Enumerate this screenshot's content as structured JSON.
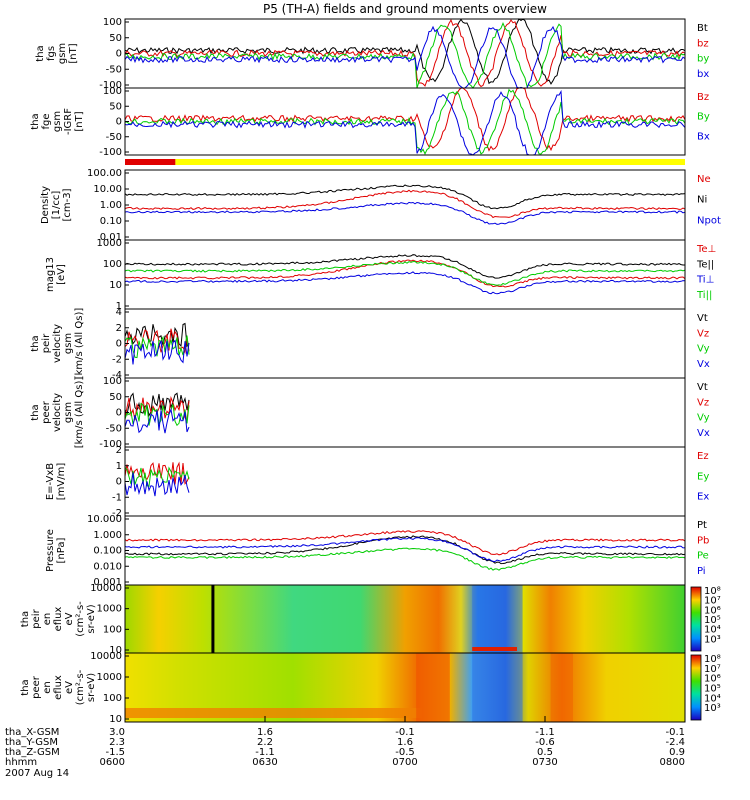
{
  "title": "P5 (TH-A) fields and ground moments overview",
  "date": "2007 Aug 14",
  "colors": {
    "black": "#000000",
    "red": "#e00000",
    "green": "#00cc00",
    "blue": "#0000e0",
    "yellow": "#ffff00"
  },
  "ephemeris": {
    "labels": [
      "tha_X-GSM",
      "tha_Y-GSM",
      "tha_Z-GSM",
      "hhmm"
    ],
    "columns": [
      {
        "x": "3.0",
        "y": "2.3",
        "z": "-1.5",
        "t": "0600"
      },
      {
        "x": "1.6",
        "y": "2.2",
        "z": "-1.1",
        "t": "0630"
      },
      {
        "x": "-0.1",
        "y": "1.6",
        "z": "-0.5",
        "t": "0700"
      },
      {
        "x": "-1.1",
        "y": "-0.6",
        "z": "0.5",
        "t": "0730"
      },
      {
        "x": "-0.1",
        "y": "-2.4",
        "z": "0.9",
        "t": "0800"
      }
    ]
  },
  "colorbar_ticks": [
    "10⁸",
    "10⁷",
    "10⁶",
    "10⁵",
    "10⁴",
    "10³"
  ],
  "chart_data": [
    {
      "type": "line",
      "ylabel": [
        "tha",
        "fgs",
        "gsm",
        "[nT]"
      ],
      "ylim": [
        -100,
        100
      ],
      "yticks": [
        "100",
        "50",
        "0",
        "-50",
        "-100"
      ],
      "legend": [
        {
          "label": "Bt",
          "color": "#000000"
        },
        {
          "label": "bz",
          "color": "#e00000"
        },
        {
          "label": "by",
          "color": "#00cc00"
        },
        {
          "label": "bx",
          "color": "#0000e0"
        }
      ]
    },
    {
      "type": "line",
      "ylabel": [
        "tha",
        "fge",
        "gsm",
        "-IGRF",
        "[nT]"
      ],
      "ylim": [
        -120,
        120
      ],
      "yticks": [
        "100",
        "50",
        "0",
        "-50",
        "-100"
      ],
      "legend": [
        {
          "label": "Bz",
          "color": "#e00000"
        },
        {
          "label": "By",
          "color": "#00cc00"
        },
        {
          "label": "Bx",
          "color": "#0000e0"
        }
      ]
    },
    {
      "type": "line",
      "ylabel": [
        "Density",
        "[1/cc]",
        "[cm-3]"
      ],
      "scale": "log",
      "yticks": [
        "100.00",
        "10.00",
        "1.00",
        "0.10",
        "0.01"
      ],
      "legend": [
        {
          "label": "Ne",
          "color": "#e00000"
        },
        {
          "label": "Ni",
          "color": "#000000"
        },
        {
          "label": "Npot",
          "color": "#0000e0"
        }
      ]
    },
    {
      "type": "line",
      "ylabel": [
        "mag13",
        "[eV]"
      ],
      "scale": "log",
      "yticks": [
        "1000",
        "100",
        "10",
        "1"
      ],
      "legend": [
        {
          "label": "Te⊥",
          "color": "#e00000"
        },
        {
          "label": "Te||",
          "color": "#000000"
        },
        {
          "label": "Ti⊥",
          "color": "#0000e0"
        },
        {
          "label": "Ti||",
          "color": "#00cc00"
        }
      ]
    },
    {
      "type": "line",
      "ylabel": [
        "tha",
        "peir",
        "velocity",
        "gsm",
        "[km/s (All Qs)]"
      ],
      "ylim": [
        -4,
        4
      ],
      "yticks": [
        "4",
        "2",
        "0",
        "-2",
        "-4"
      ],
      "legend": [
        {
          "label": "Vt",
          "color": "#000000"
        },
        {
          "label": "Vz",
          "color": "#e00000"
        },
        {
          "label": "Vy",
          "color": "#00cc00"
        },
        {
          "label": "Vx",
          "color": "#0000e0"
        }
      ]
    },
    {
      "type": "line",
      "ylabel": [
        "tha",
        "peer",
        "velocity",
        "gsm",
        "[km/s (All Qs)]"
      ],
      "ylim": [
        -100,
        100
      ],
      "yticks": [
        "100",
        "50",
        "0",
        "-50",
        "-100"
      ],
      "legend": [
        {
          "label": "Vt",
          "color": "#000000"
        },
        {
          "label": "Vz",
          "color": "#e00000"
        },
        {
          "label": "Vy",
          "color": "#00cc00"
        },
        {
          "label": "Vx",
          "color": "#0000e0"
        }
      ]
    },
    {
      "type": "line",
      "ylabel": [
        "E=-VxB",
        "[mV/m]"
      ],
      "ylim": [
        -2,
        2
      ],
      "yticks": [
        "2",
        "1",
        "0",
        "-1",
        "-2"
      ],
      "legend": [
        {
          "label": "Ez",
          "color": "#e00000"
        },
        {
          "label": "Ey",
          "color": "#00cc00"
        },
        {
          "label": "Ex",
          "color": "#0000e0"
        }
      ]
    },
    {
      "type": "line",
      "ylabel": [
        "Pressure",
        "[nPa]"
      ],
      "scale": "log",
      "yticks": [
        "10.000",
        "1.000",
        "0.100",
        "0.010",
        "0.001"
      ],
      "legend": [
        {
          "label": "Pt",
          "color": "#000000"
        },
        {
          "label": "Pb",
          "color": "#e00000"
        },
        {
          "label": "Pe",
          "color": "#00cc00"
        },
        {
          "label": "Pi",
          "color": "#0000e0"
        }
      ]
    },
    {
      "type": "heatmap",
      "ylabel": [
        "tha",
        "peir",
        "en",
        "eflux",
        "eV",
        "(cm²-s-",
        "sr-eV)"
      ],
      "yticks": [
        "10000",
        "1000",
        "100",
        "10"
      ]
    },
    {
      "type": "heatmap",
      "ylabel": [
        "tha",
        "peer",
        "en",
        "eflux",
        "eV",
        "(cm²-s-",
        "sr-eV)"
      ],
      "yticks": [
        "10000",
        "1000",
        "100",
        "10"
      ]
    }
  ]
}
